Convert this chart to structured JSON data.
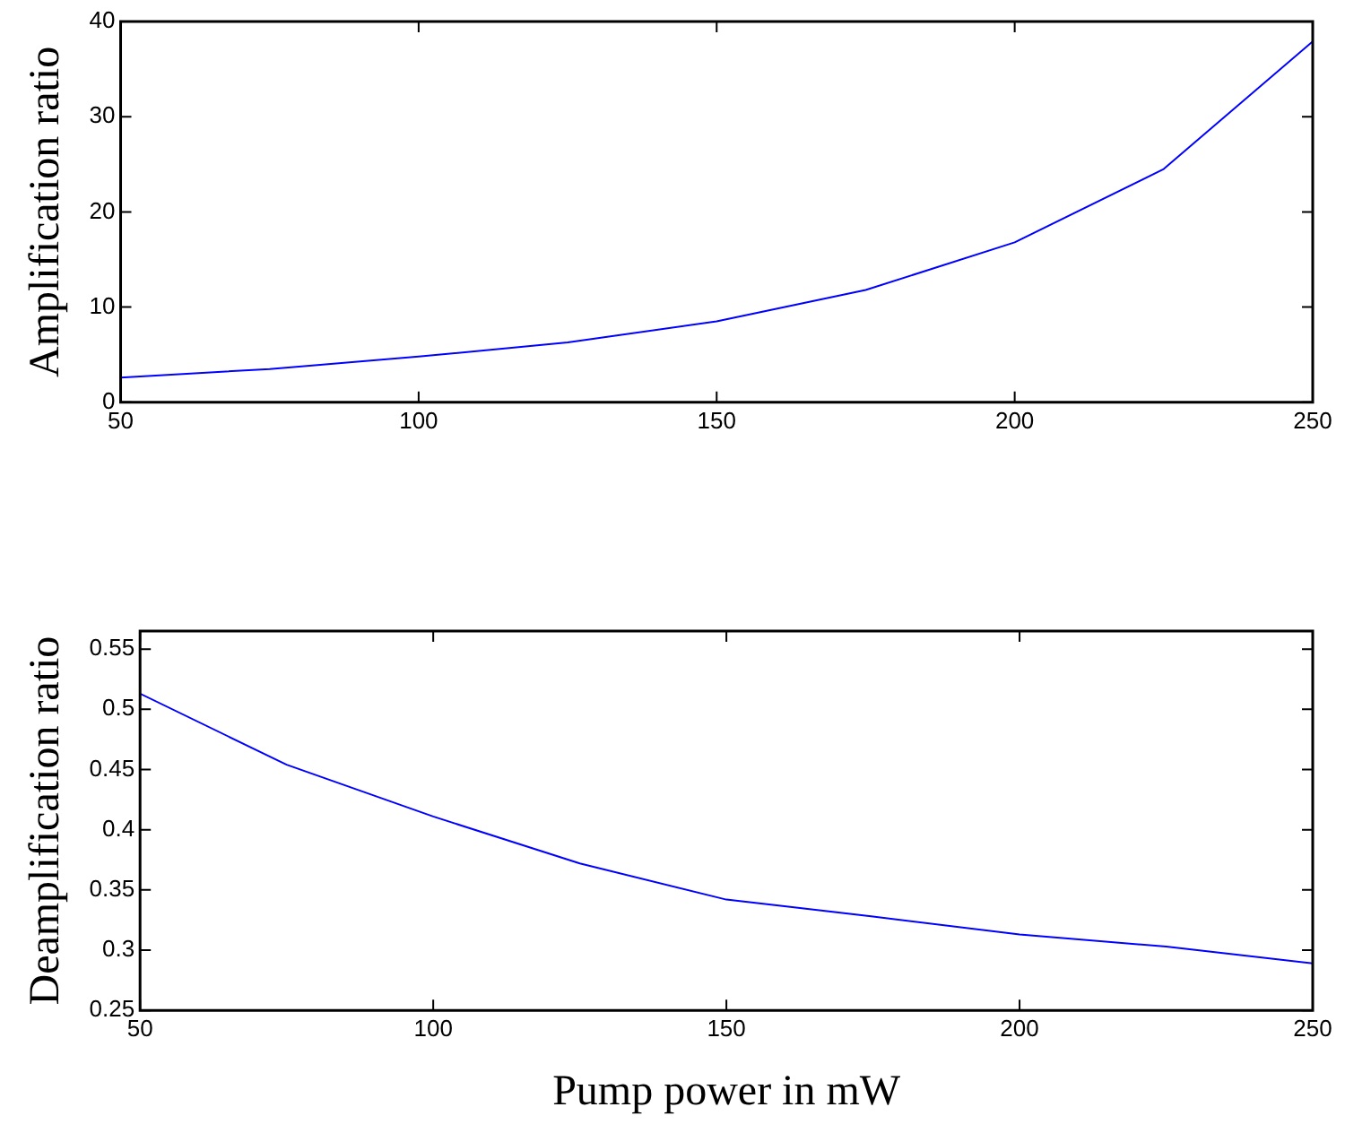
{
  "chart_data": [
    {
      "type": "line",
      "ylabel": "Amplification ratio",
      "x": [
        50,
        75,
        100,
        125,
        150,
        175,
        200,
        225,
        250
      ],
      "xlim": [
        50,
        250
      ],
      "xticks": [
        50,
        100,
        150,
        200,
        250
      ],
      "ylim": [
        0,
        40
      ],
      "yticks": [
        0,
        10,
        20,
        30,
        40
      ],
      "series": [
        {
          "color": "#0000ff",
          "values": [
            2.6,
            3.5,
            4.8,
            6.3,
            8.5,
            11.8,
            16.8,
            24.5,
            37.9
          ]
        }
      ]
    },
    {
      "type": "line",
      "ylabel": "Deamplification ratio",
      "xlabel": "Pump power in mW",
      "x": [
        50,
        75,
        100,
        125,
        150,
        175,
        200,
        225,
        250
      ],
      "xlim": [
        50,
        250
      ],
      "xticks": [
        50,
        100,
        150,
        200,
        250
      ],
      "ylim": [
        0.25,
        0.565
      ],
      "yticks": [
        0.25,
        0.3,
        0.35,
        0.4,
        0.45,
        0.5,
        0.55
      ],
      "series": [
        {
          "color": "#0000ff",
          "values": [
            0.513,
            0.454,
            0.411,
            0.372,
            0.342,
            0.328,
            0.313,
            0.303,
            0.289
          ]
        }
      ]
    }
  ]
}
